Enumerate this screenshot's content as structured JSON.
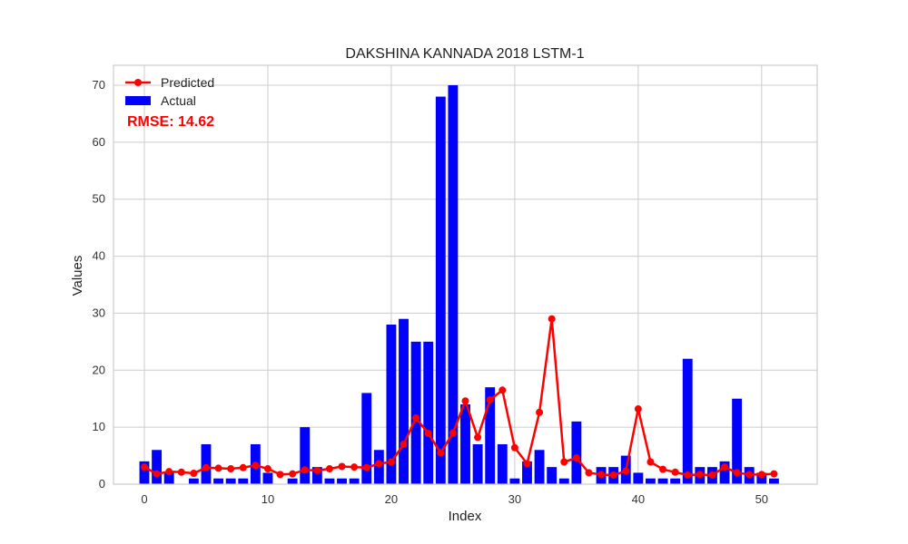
{
  "chart_data": {
    "type": "bar",
    "title": "DAKSHINA KANNADA 2018 LSTM-1",
    "xlabel": "Index",
    "ylabel": "Values",
    "xlim": [
      -2.5,
      54.5
    ],
    "ylim": [
      0,
      73.5
    ],
    "xticks": [
      0,
      10,
      20,
      30,
      40,
      50
    ],
    "yticks": [
      0,
      10,
      20,
      30,
      40,
      50,
      60,
      70
    ],
    "grid": true,
    "legend_position": "top-left",
    "annotation": "RMSE: 14.62",
    "x": [
      0,
      1,
      2,
      3,
      4,
      5,
      6,
      7,
      8,
      9,
      10,
      11,
      12,
      13,
      14,
      15,
      16,
      17,
      18,
      19,
      20,
      21,
      22,
      23,
      24,
      25,
      26,
      27,
      28,
      29,
      30,
      31,
      32,
      33,
      34,
      35,
      36,
      37,
      38,
      39,
      40,
      41,
      42,
      43,
      44,
      45,
      46,
      47,
      48,
      49,
      50,
      51
    ],
    "series": [
      {
        "name": "Actual",
        "kind": "bar",
        "color": "#0000ff",
        "values": [
          4,
          6,
          2,
          0,
          1,
          7,
          1,
          1,
          1,
          7,
          2,
          0,
          1,
          10,
          3,
          1,
          1,
          1,
          16,
          6,
          28,
          29,
          25,
          25,
          68,
          70,
          14,
          7,
          17,
          7,
          1,
          4,
          6,
          3,
          1,
          11,
          0,
          3,
          3,
          5,
          2,
          1,
          1,
          1,
          22,
          3,
          3,
          4,
          15,
          3,
          2,
          1
        ]
      },
      {
        "name": "Predicted",
        "kind": "line",
        "color": "#ff0000",
        "values": [
          3,
          1.8,
          2.2,
          2.1,
          1.9,
          2.9,
          2.8,
          2.7,
          2.9,
          3.3,
          2.7,
          1.7,
          1.8,
          2.5,
          2.4,
          2.7,
          3.1,
          3.0,
          2.9,
          3.6,
          3.9,
          7.0,
          11.6,
          8.9,
          5.5,
          9.0,
          14.6,
          8.2,
          14.8,
          16.5,
          6.4,
          3.6,
          12.6,
          29.0,
          3.9,
          4.6,
          2.0,
          1.7,
          1.6,
          2.3,
          13.2,
          3.9,
          2.6,
          2.1,
          1.6,
          1.7,
          1.6,
          3.0,
          2.0,
          1.7,
          1.7,
          1.8
        ]
      }
    ]
  },
  "colors": {
    "bar": "#0000ff",
    "line": "#ff0000",
    "grid": "#cccccc",
    "frame": "#cccccc"
  }
}
